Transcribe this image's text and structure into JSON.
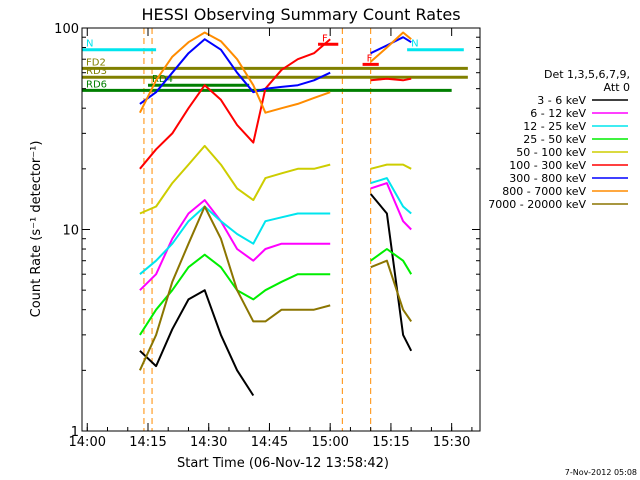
{
  "chart_data": {
    "type": "line",
    "title": "HESSI Observing Summary Count Rates",
    "xlabel": "Start Time (06-Nov-12 13:58:42)",
    "ylabel": "Count Rate (s⁻¹ detector⁻¹)",
    "y_scale": "log",
    "ylim": [
      1,
      100
    ],
    "xlim": [
      "13:58:42",
      "15:37:00"
    ],
    "x_tick_labels": [
      "14:00",
      "14:15",
      "14:30",
      "14:45",
      "15:00",
      "15:15",
      "15:30"
    ],
    "y_tick_labels": [
      "1",
      "10",
      "100"
    ],
    "grid": false,
    "legend": {
      "title_lines": [
        "Det 1,3,5,6,7,9,",
        "Att 0"
      ],
      "placement": "right"
    },
    "footer": "7-Nov-2012 05:08",
    "data_gaps": [
      [
        "14:14",
        "14:16"
      ],
      [
        "15:03",
        "15:10"
      ]
    ],
    "annotations": [
      {
        "label": "N",
        "y": 78,
        "x_range": [
          "13:58:42",
          "14:17"
        ],
        "color": "#00e5ee"
      },
      {
        "label": "N",
        "y": 78,
        "x_range": [
          "15:19",
          "15:33"
        ],
        "color": "#00e5ee"
      },
      {
        "label": "FD2",
        "y": 63,
        "x_range": [
          "13:58:42",
          "15:34"
        ],
        "color": "#808000"
      },
      {
        "label": "RD3",
        "y": 57,
        "x_range": [
          "13:58:42",
          "15:34"
        ],
        "color": "#808000"
      },
      {
        "label": "RD4",
        "y": 52,
        "x_range": [
          "14:15",
          "14:40"
        ],
        "color": "#007f00"
      },
      {
        "label": "RD6",
        "y": 49,
        "x_range": [
          "13:58:42",
          "15:30"
        ],
        "color": "#007f00"
      },
      {
        "label": "F",
        "y": 83,
        "x_range": [
          "14:57",
          "15:02"
        ],
        "color": "#ff0000"
      },
      {
        "label": "F",
        "y": 66,
        "x_range": [
          "15:08",
          "15:12"
        ],
        "color": "#ff0000"
      }
    ],
    "x": [
      "14:10",
      "14:13",
      "14:17",
      "14:21",
      "14:25",
      "14:29",
      "14:33",
      "14:37",
      "14:41",
      "14:44",
      "14:48",
      "14:52",
      "14:56",
      "15:00",
      "15:04",
      "15:10",
      "15:14",
      "15:18",
      "15:20"
    ],
    "series": [
      {
        "name": "3 - 6 keV",
        "color": "#000000",
        "values": [
          null,
          2.5,
          2.1,
          3.2,
          4.5,
          5.0,
          3.0,
          2.0,
          1.5,
          null,
          null,
          null,
          null,
          null,
          null,
          15,
          12,
          3.0,
          2.5
        ]
      },
      {
        "name": "6 - 12 keV",
        "color": "#ff00ff",
        "values": [
          null,
          5.0,
          6.0,
          9.0,
          12,
          14,
          11,
          8.0,
          7.0,
          8.0,
          8.5,
          8.5,
          8.5,
          8.5,
          null,
          16,
          17,
          11,
          10
        ]
      },
      {
        "name": "12 - 25 keV",
        "color": "#00e5ee",
        "values": [
          null,
          6.0,
          7.0,
          8.5,
          11,
          13,
          11,
          9.5,
          8.5,
          11,
          11.5,
          12,
          12,
          12,
          null,
          17,
          18,
          13,
          12
        ]
      },
      {
        "name": "25 - 50 keV",
        "color": "#00ee00",
        "values": [
          null,
          3.0,
          4.0,
          5.0,
          6.5,
          7.5,
          6.5,
          5.0,
          4.5,
          5.0,
          5.5,
          6.0,
          6.0,
          6.0,
          null,
          7.0,
          8.0,
          7.0,
          6.0
        ]
      },
      {
        "name": "50 - 100 keV",
        "color": "#cdcd00",
        "values": [
          null,
          12,
          13,
          17,
          21,
          26,
          21,
          16,
          14,
          18,
          19,
          20,
          20,
          21,
          null,
          20,
          21,
          21,
          20
        ]
      },
      {
        "name": "100 - 300 keV",
        "color": "#ff0000",
        "values": [
          null,
          20,
          25,
          30,
          40,
          52,
          44,
          33,
          27,
          50,
          62,
          70,
          75,
          88,
          null,
          55,
          56,
          55,
          56
        ]
      },
      {
        "name": "300 - 800 keV",
        "color": "#0000ff",
        "values": [
          null,
          42,
          48,
          60,
          75,
          88,
          78,
          60,
          48,
          50,
          51,
          52,
          55,
          60,
          null,
          75,
          82,
          90,
          85
        ]
      },
      {
        "name": "800 - 7000 keV",
        "color": "#ff8c00",
        "values": [
          null,
          38,
          55,
          72,
          85,
          95,
          86,
          70,
          52,
          38,
          40,
          42,
          45,
          48,
          null,
          68,
          80,
          95,
          88
        ]
      },
      {
        "name": "7000 - 20000 keV",
        "color": "#8b7500",
        "values": [
          null,
          2.0,
          3.0,
          5.5,
          8.5,
          13,
          9.0,
          5.0,
          3.5,
          3.5,
          4.0,
          4.0,
          4.0,
          4.2,
          null,
          6.5,
          7.0,
          4.0,
          3.5
        ]
      }
    ]
  }
}
